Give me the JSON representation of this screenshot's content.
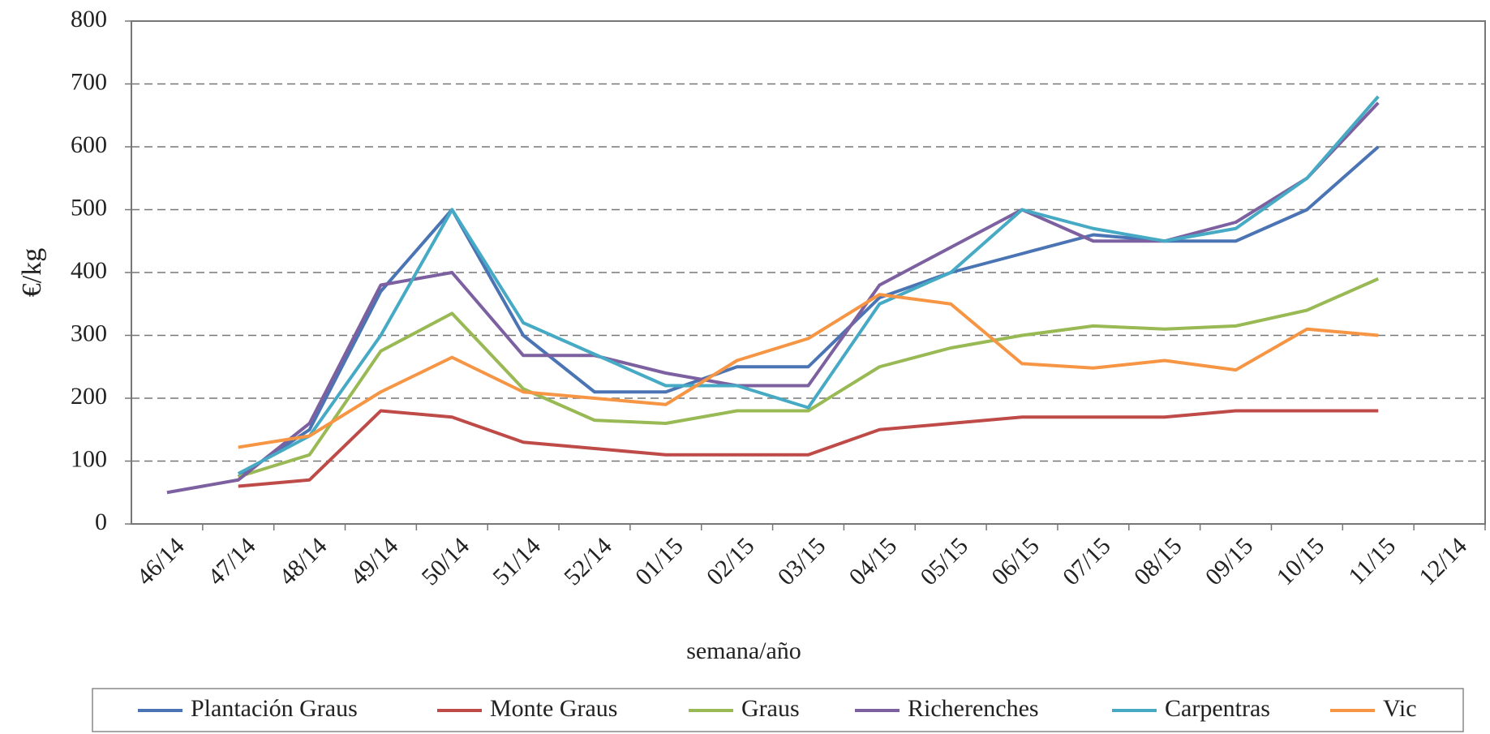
{
  "chart_data": {
    "type": "line",
    "xlabel": "semana/año",
    "ylabel": "€/kg",
    "categories": [
      "46/14",
      "47/14",
      "48/14",
      "49/14",
      "50/14",
      "51/14",
      "52/14",
      "01/15",
      "02/15",
      "03/15",
      "04/15",
      "05/15",
      "06/15",
      "07/15",
      "08/15",
      "09/15",
      "10/15",
      "11/15",
      "12/14"
    ],
    "series": [
      {
        "name": "Plantación Graus",
        "color": "#4a74b4",
        "values": [
          null,
          75,
          150,
          370,
          500,
          300,
          210,
          210,
          250,
          250,
          360,
          400,
          430,
          460,
          450,
          450,
          500,
          600,
          null
        ]
      },
      {
        "name": "Monte Graus",
        "color": "#be4b48",
        "values": [
          null,
          60,
          70,
          180,
          170,
          130,
          120,
          110,
          110,
          110,
          150,
          160,
          170,
          170,
          170,
          180,
          180,
          180,
          null
        ]
      },
      {
        "name": "Graus",
        "color": "#98b954",
        "values": [
          null,
          75,
          110,
          275,
          335,
          215,
          165,
          160,
          180,
          180,
          250,
          280,
          300,
          315,
          310,
          315,
          340,
          390,
          null
        ]
      },
      {
        "name": "Richerenches",
        "color": "#7d60a0",
        "values": [
          50,
          70,
          160,
          380,
          400,
          268,
          268,
          240,
          220,
          220,
          380,
          440,
          500,
          450,
          450,
          480,
          550,
          670,
          null
        ]
      },
      {
        "name": "Carpentras",
        "color": "#46aac5",
        "values": [
          null,
          80,
          140,
          300,
          500,
          320,
          270,
          220,
          220,
          185,
          350,
          400,
          500,
          470,
          450,
          470,
          550,
          680,
          null
        ]
      },
      {
        "name": "Vic",
        "color": "#f69544",
        "values": [
          null,
          122,
          140,
          210,
          265,
          210,
          200,
          190,
          260,
          295,
          365,
          350,
          255,
          248,
          260,
          245,
          310,
          300,
          null
        ]
      }
    ],
    "ylim": [
      0,
      800
    ],
    "yticks": [
      0,
      100,
      200,
      300,
      400,
      500,
      600,
      700,
      800
    ],
    "grid": true,
    "legend": "bottom"
  }
}
